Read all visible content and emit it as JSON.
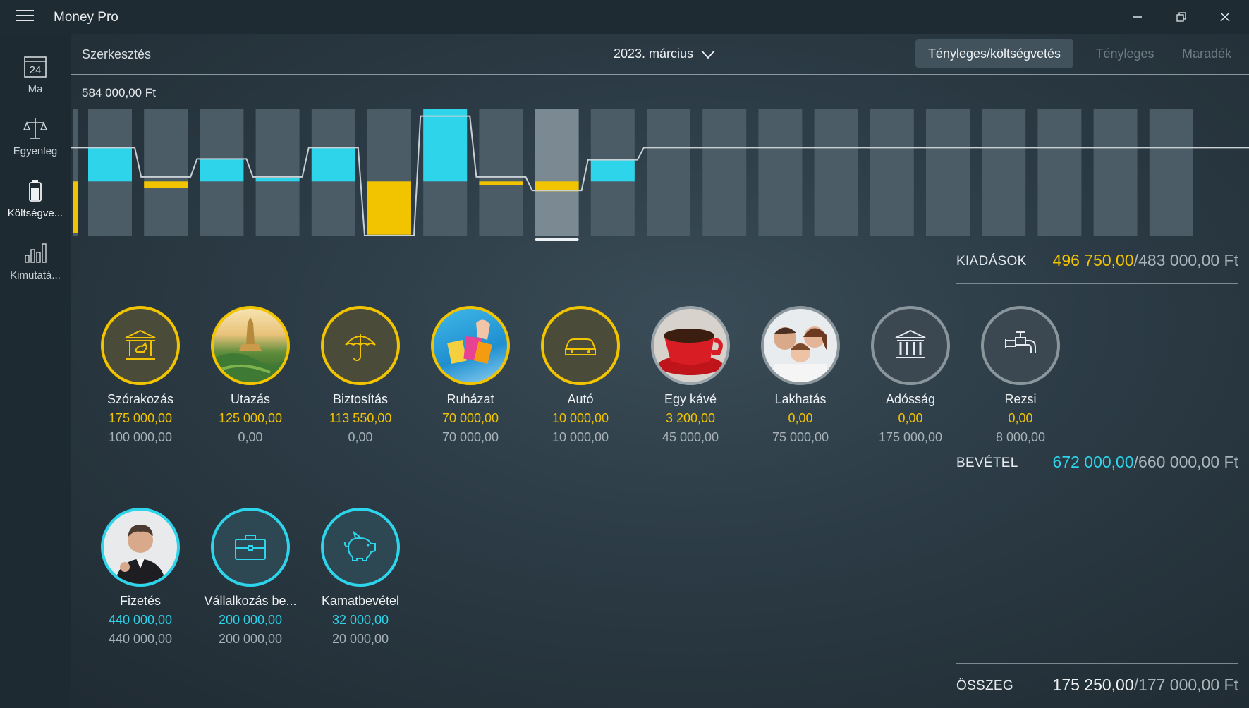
{
  "window": {
    "title": "Money Pro"
  },
  "sidebar": {
    "items": [
      {
        "label": "Ma",
        "icon": "calendar-icon",
        "day": "24"
      },
      {
        "label": "Egyenleg",
        "icon": "scales-icon"
      },
      {
        "label": "Költségve...",
        "icon": "battery-icon",
        "active": true
      },
      {
        "label": "Kimutatá...",
        "icon": "bar-chart-icon"
      }
    ]
  },
  "toolbar": {
    "edit": "Szerkesztés",
    "period": "2023. március",
    "segments": [
      "Tényleges/költségvetés",
      "Tényleges",
      "Maradék"
    ],
    "active_segment": 0
  },
  "chart_max_label": "584 000,00 Ft",
  "chart_data": {
    "type": "bar",
    "title": "",
    "xlabel": "",
    "ylabel": "",
    "ylim": [
      -120000,
      160000
    ],
    "periods": 21,
    "selected_index": 9,
    "budget": [
      null,
      483000,
      483000,
      483000,
      483000,
      483000,
      483000,
      483000,
      483000,
      483000,
      483000,
      483000,
      483000,
      483000,
      483000,
      483000,
      483000,
      483000,
      483000,
      483000,
      483000
    ],
    "balance": [
      -115000,
      75000,
      -15000,
      50000,
      8000,
      75000,
      -118000,
      160000,
      -8000,
      -22000,
      48000,
      null,
      null,
      null,
      null,
      null,
      null,
      null,
      null,
      null,
      null
    ],
    "line_levels": [
      75000,
      75000,
      10000,
      50000,
      10000,
      75000,
      -120000,
      145000,
      10000,
      -20000,
      48000,
      75000,
      75000,
      75000,
      75000,
      75000,
      75000,
      75000,
      75000,
      75000,
      75000
    ],
    "colors": {
      "surplus": "#2dd4ea",
      "deficit": "#f2c400",
      "bar_bg": "#4b5c66",
      "bar_selected": "#7b8a92",
      "line": "#c7d0d5"
    }
  },
  "summary": {
    "expenses": {
      "label": "KIADÁSOK",
      "actual": "496 750,00",
      "budget": "/483 000,00 Ft",
      "color": "#f2c400"
    },
    "income": {
      "label": "BEVÉTEL",
      "actual": "672 000,00",
      "budget": "/660 000,00 Ft",
      "color": "#2dd4ea"
    },
    "total": {
      "label": "ÖSSZEG",
      "actual": "175 250,00",
      "budget": "/177 000,00 Ft",
      "color": "#eef1f3"
    }
  },
  "expense_categories": [
    {
      "name": "Szórakozás",
      "actual": "175 000,00",
      "budget": "100 000,00",
      "icon": "carousel-icon",
      "style": "exp"
    },
    {
      "name": "Utazás",
      "actual": "125 000,00",
      "budget": "0,00",
      "icon": "travel-photo-icon",
      "style": "exp"
    },
    {
      "name": "Biztosítás",
      "actual": "113 550,00",
      "budget": "0,00",
      "icon": "umbrella-icon",
      "style": "exp"
    },
    {
      "name": "Ruházat",
      "actual": "70 000,00",
      "budget": "70 000,00",
      "icon": "shopping-bags-photo-icon",
      "style": "exp"
    },
    {
      "name": "Autó",
      "actual": "10 000,00",
      "budget": "10 000,00",
      "icon": "car-icon",
      "style": "exp"
    },
    {
      "name": "Egy kávé",
      "actual": "3 200,00",
      "budget": "45 000,00",
      "icon": "coffee-photo-icon",
      "style": "exp"
    },
    {
      "name": "Lakhatás",
      "actual": "0,00",
      "budget": "75 000,00",
      "icon": "family-photo-icon",
      "style": "zero"
    },
    {
      "name": "Adósság",
      "actual": "0,00",
      "budget": "175 000,00",
      "icon": "bank-icon",
      "style": "zero"
    },
    {
      "name": "Rezsi",
      "actual": "0,00",
      "budget": "8 000,00",
      "icon": "faucet-icon",
      "style": "zero"
    }
  ],
  "income_categories": [
    {
      "name": "Fizetés",
      "actual": "440 000,00",
      "budget": "440 000,00",
      "icon": "businessman-photo-icon",
      "style": "inc"
    },
    {
      "name": "Vállalkozás be...",
      "actual": "200 000,00",
      "budget": "200 000,00",
      "icon": "briefcase-icon",
      "style": "inc"
    },
    {
      "name": "Kamatbevétel",
      "actual": "32 000,00",
      "budget": "20 000,00",
      "icon": "piggy-bank-icon",
      "style": "inc"
    }
  ]
}
